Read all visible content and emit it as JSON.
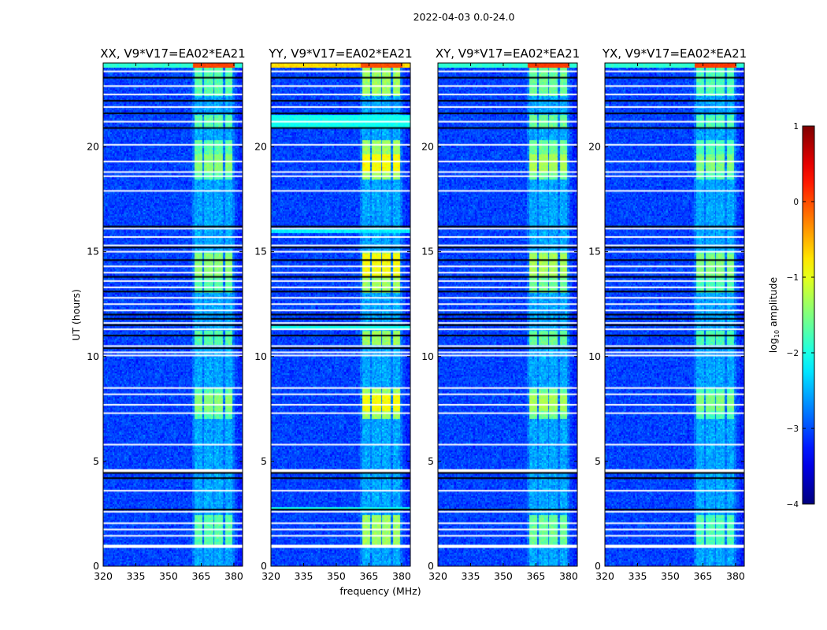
{
  "chart_data": {
    "type": "heatmap",
    "suptitle": "2022-04-03 0.0-24.0",
    "xlabel": "frequency (MHz)",
    "ylabel": "UT (hours)",
    "xlim": [
      320,
      384
    ],
    "ylim": [
      0,
      24
    ],
    "xticks": [
      320,
      335,
      350,
      365,
      380
    ],
    "yticks": [
      0,
      5,
      10,
      15,
      20
    ],
    "panels": [
      {
        "title": "XX, V9*V17=EA02*EA21",
        "band_level": -1.7,
        "peak_level": -1.45,
        "top_row_level": 0.05,
        "cyan_rows": false
      },
      {
        "title": "YY, V9*V17=EA02*EA21",
        "band_level": -1.35,
        "peak_level": -0.9,
        "top_row_level": 0.0,
        "cyan_rows": true
      },
      {
        "title": "XY, V9*V17=EA02*EA21",
        "band_level": -1.6,
        "peak_level": -1.3,
        "top_row_level": 0.1,
        "cyan_rows": false
      },
      {
        "title": "YX, V9*V17=EA02*EA21",
        "band_level": -1.75,
        "peak_level": -1.5,
        "top_row_level": 0.1,
        "cyan_rows": false
      }
    ],
    "background_level": -3.05,
    "rfi_channel_blocks_mhz": [
      [
        361.5,
        365.3
      ],
      [
        366.3,
        370.2
      ],
      [
        371.2,
        374.8
      ],
      [
        375.7,
        379.3
      ]
    ],
    "bright_time_windows_hours": [
      [
        1.0,
        2.4
      ],
      [
        7.0,
        8.5
      ],
      [
        10.5,
        11.2
      ],
      [
        13.0,
        15.0
      ],
      [
        18.4,
        20.3
      ],
      [
        20.9,
        21.5
      ],
      [
        22.4,
        23.8
      ]
    ],
    "flagged_times_white_hours": [
      0.95,
      1.45,
      1.75,
      2.05,
      2.6,
      3.6,
      4.55,
      5.8,
      7.3,
      7.7,
      8.2,
      8.5,
      10.05,
      10.2,
      10.5,
      11.3,
      11.6,
      12.2,
      12.5,
      12.8,
      13.3,
      13.6,
      14.0,
      14.3,
      15.0,
      15.3,
      15.7,
      16.1,
      17.9,
      18.6,
      18.8,
      19.3,
      20.1,
      21.2,
      21.9,
      22.5,
      22.9,
      23.6
    ],
    "flagged_times_black_hours": [
      2.7,
      4.2,
      4.45,
      10.4,
      11.0,
      11.5,
      11.8,
      12.0,
      13.1,
      13.8,
      14.6,
      15.2,
      16.2,
      20.9,
      21.6,
      22.2,
      23.3
    ],
    "colorbar": {
      "label": "log10 amplitude",
      "label_main": "log",
      "label_sub": "10",
      "label_rest": " amplitude",
      "range": [
        -4,
        1
      ],
      "ticks": [
        1,
        0,
        -1,
        -2,
        -3,
        -4
      ],
      "tick_labels": [
        "1",
        "0",
        "−1",
        "−2",
        "−3",
        "−4"
      ],
      "colormap": "jet"
    }
  }
}
